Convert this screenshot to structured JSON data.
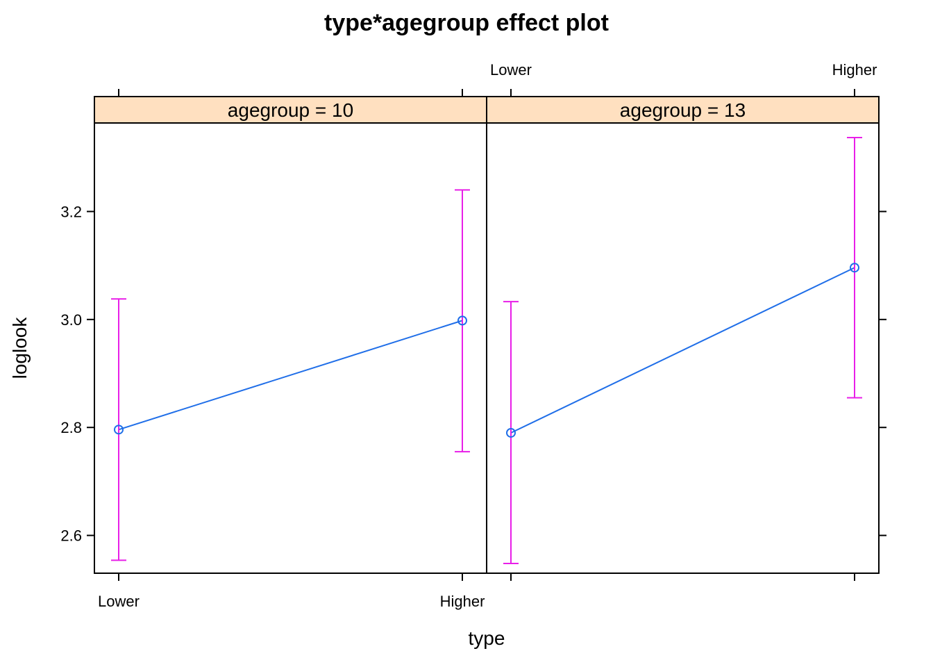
{
  "chart_data": {
    "type": "line",
    "title": "type*agegroup effect plot",
    "xlabel": "type",
    "ylabel": "loglook",
    "categories": [
      "Lower",
      "Higher"
    ],
    "yticks": [
      "2.6",
      "2.8",
      "3.0",
      "3.2"
    ],
    "ylim": [
      2.53,
      3.364
    ],
    "grid": false,
    "colors": {
      "line": "#1f6ee8",
      "ci": "#e81ee8",
      "strip": "#ffe0c0"
    },
    "panels": [
      {
        "strip": "agegroup = 10",
        "fit": [
          2.796,
          2.998
        ],
        "lower": [
          2.554,
          2.755
        ],
        "upper": [
          3.038,
          3.24
        ]
      },
      {
        "strip": "agegroup = 13",
        "fit": [
          2.79,
          3.096
        ],
        "lower": [
          2.548,
          2.855
        ],
        "upper": [
          3.033,
          3.337
        ]
      }
    ]
  }
}
